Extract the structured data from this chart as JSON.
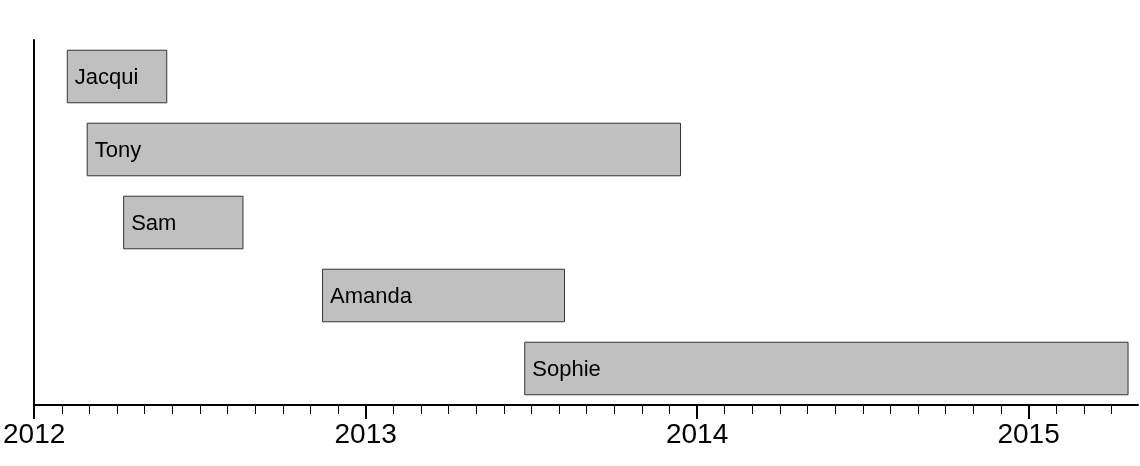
{
  "chart_data": {
    "type": "bar",
    "orientation": "horizontal",
    "categories": [
      "Jacqui",
      "Tony",
      "Sam",
      "Amanda",
      "Sophie"
    ],
    "base": [
      2012.1,
      2012.16,
      2012.27,
      2012.87,
      2013.48
    ],
    "values": [
      0.3,
      1.79,
      0.36,
      0.73,
      1.82
    ],
    "color": "#c0c0c0",
    "xlim": [
      2012,
      2015.33
    ],
    "xticks": [
      2012,
      {
        "value": 2012.0833,
        "label": null
      },
      {
        "value": 2012.1667,
        "label": null
      },
      {
        "value": 2012.25,
        "label": null
      },
      {
        "value": 2012.3333,
        "label": null
      },
      {
        "value": 2012.4167,
        "label": null
      },
      {
        "value": 2012.5,
        "label": null
      },
      {
        "value": 2012.5833,
        "label": null
      },
      {
        "value": 2012.6667,
        "label": null
      },
      {
        "value": 2012.75,
        "label": null
      },
      {
        "value": 2012.8333,
        "label": null
      },
      {
        "value": 2012.9167,
        "label": null
      },
      2013,
      {
        "value": 2013.0833,
        "label": null
      },
      {
        "value": 2013.1667,
        "label": null
      },
      {
        "value": 2013.25,
        "label": null
      },
      {
        "value": 2013.3333,
        "label": null
      },
      {
        "value": 2013.4167,
        "label": null
      },
      {
        "value": 2013.5,
        "label": null
      },
      {
        "value": 2013.5833,
        "label": null
      },
      {
        "value": 2013.6667,
        "label": null
      },
      {
        "value": 2013.75,
        "label": null
      },
      {
        "value": 2013.8333,
        "label": null
      },
      {
        "value": 2013.9167,
        "label": null
      },
      2014,
      {
        "value": 2014.0833,
        "label": null
      },
      {
        "value": 2014.1667,
        "label": null
      },
      {
        "value": 2014.25,
        "label": null
      },
      {
        "value": 2014.3333,
        "label": null
      },
      {
        "value": 2014.4167,
        "label": null
      },
      {
        "value": 2014.5,
        "label": null
      },
      {
        "value": 2014.5833,
        "label": null
      },
      {
        "value": 2014.6667,
        "label": null
      },
      {
        "value": 2014.75,
        "label": null
      },
      {
        "value": 2014.8333,
        "label": null
      },
      {
        "value": 2014.9167,
        "label": null
      },
      2015,
      {
        "value": 2015.0833,
        "label": null
      },
      {
        "value": 2015.1667,
        "label": null
      },
      {
        "value": 2015.25,
        "label": null
      }
    ],
    "tick_labels": "x"
  }
}
